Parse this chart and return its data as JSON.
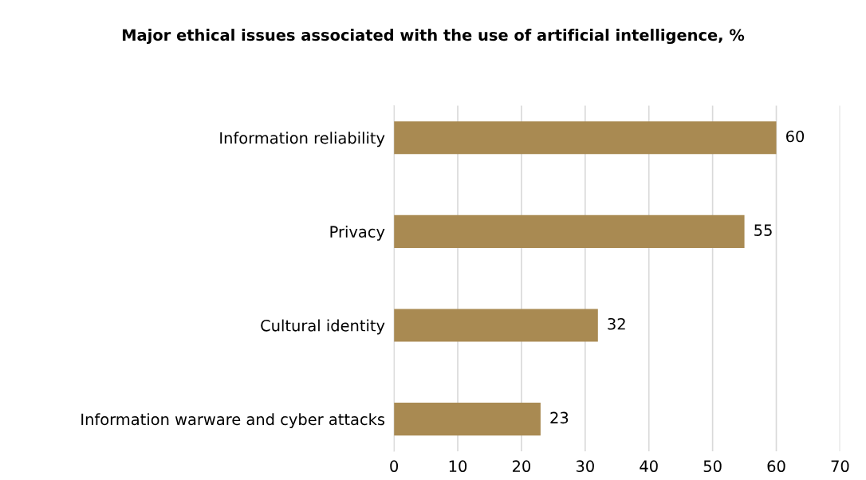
{
  "chart_data": {
    "type": "bar",
    "orientation": "horizontal",
    "title": "Major ethical issues associated with the use of artificial intelligence, %",
    "categories": [
      "Information reliability",
      "Privacy",
      "Cultural identity",
      "Information warware and cyber attacks"
    ],
    "values": [
      60,
      55,
      32,
      23
    ],
    "color": "#a98a52",
    "xlim": [
      0,
      70
    ],
    "xticks": [
      0,
      10,
      20,
      30,
      40,
      50,
      60,
      70
    ],
    "grid": "x",
    "data_labels": true
  }
}
